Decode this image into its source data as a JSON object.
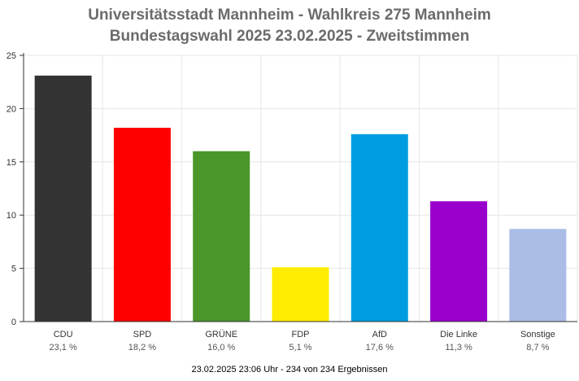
{
  "chart_data": {
    "type": "bar",
    "title": "Universitätsstadt Mannheim - Wahlkreis 275 Mannheim",
    "subtitle": "Bundestagswahl 2025 23.02.2025  - Zweitstimmen",
    "categories": [
      "CDU",
      "SPD",
      "GRÜNE",
      "FDP",
      "AfD",
      "Die Linke",
      "Sonstige"
    ],
    "values": [
      23.1,
      18.2,
      16.0,
      5.1,
      17.6,
      11.3,
      8.7
    ],
    "value_labels": [
      "23,1 %",
      "18,2 %",
      "16,0 %",
      "5,1 %",
      "17,6 %",
      "11,3 %",
      "8,7 %"
    ],
    "colors": [
      "#333333",
      "#ff0000",
      "#4a962a",
      "#ffec00",
      "#009ee0",
      "#9a00cc",
      "#a9bde6"
    ],
    "ylim": [
      0,
      25
    ],
    "yticks": [
      "0",
      "5",
      "10",
      "15",
      "20",
      "25"
    ],
    "xlabel": "",
    "ylabel": "",
    "grid": true,
    "legend": "none"
  },
  "footer": {
    "note": "23.02.2025 23:06 Uhr - 234 von 234 Ergebnissen"
  }
}
